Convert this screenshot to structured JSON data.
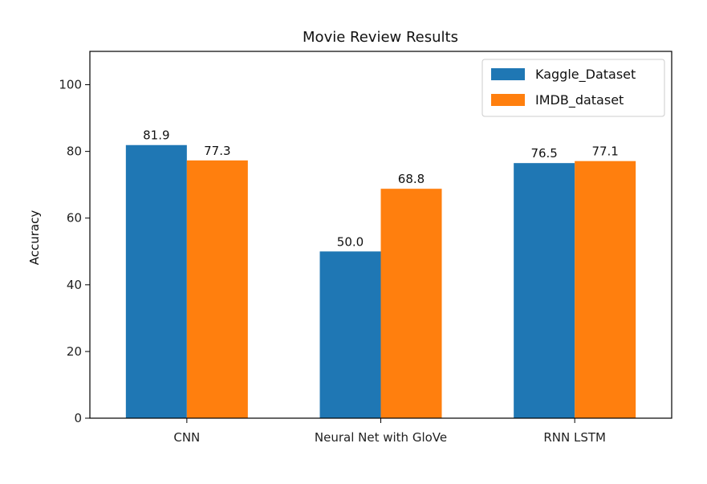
{
  "chart_data": {
    "type": "bar",
    "title": "Movie Review Results",
    "xlabel": "",
    "ylabel": "Accuracy",
    "ylim": [
      0,
      110
    ],
    "yticks": [
      0,
      20,
      40,
      60,
      80,
      100
    ],
    "categories": [
      "CNN",
      "Neural Net with GloVe",
      "RNN LSTM"
    ],
    "series": [
      {
        "name": "Kaggle_Dataset",
        "values": [
          81.9,
          50.0,
          76.5
        ],
        "labels": [
          "81.9",
          "50.0",
          "76.5"
        ],
        "color": "#1f77b4"
      },
      {
        "name": "IMDB_dataset",
        "values": [
          77.3,
          68.8,
          77.1
        ],
        "labels": [
          "77.3",
          "68.8",
          "77.1"
        ],
        "color": "#ff7f0e"
      }
    ],
    "legend": "top-right",
    "grid": false
  }
}
